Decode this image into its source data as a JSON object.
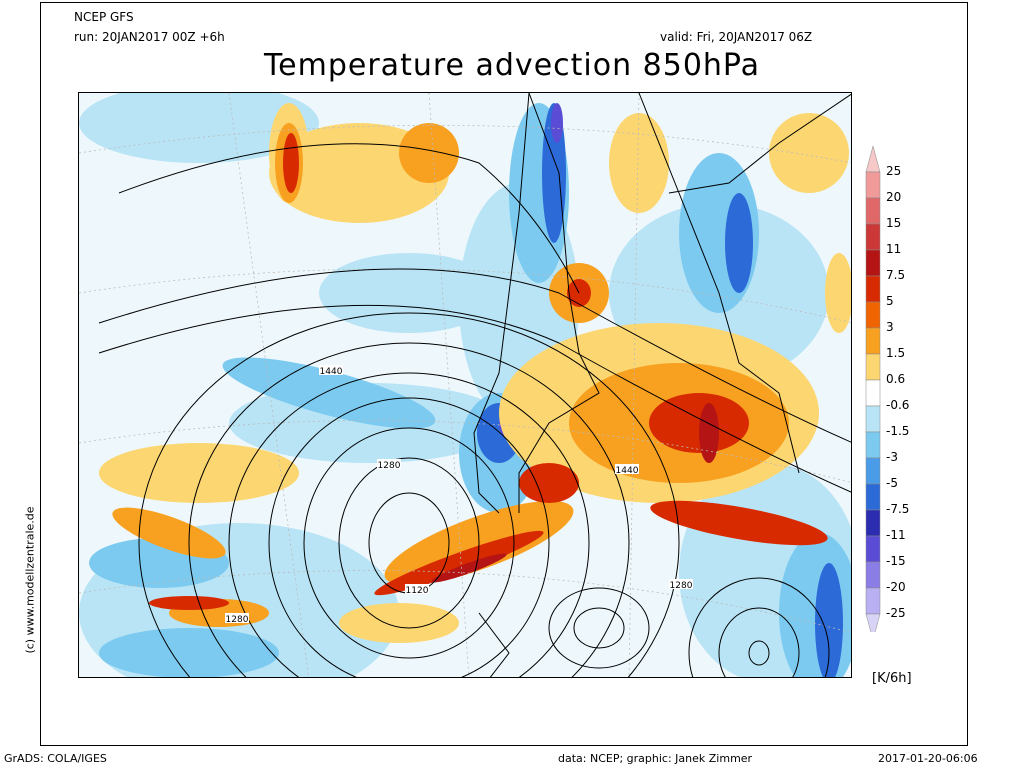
{
  "header": {
    "model": "NCEP GFS",
    "run": "run: 20JAN2017 00Z +6h",
    "valid": "valid: Fri, 20JAN2017 06Z",
    "title": "Temperature advection 850hPa"
  },
  "side_text": "(c) www.modellzentrale.de",
  "units": "[K/6h]",
  "footer": {
    "left": "GrADS: COLA/IGES",
    "center": "data: NCEP; graphic: Janek Zimmer",
    "right": "2017-01-20-06:06"
  },
  "contour_labels": [
    "1440",
    "1280",
    "1120",
    "1280",
    "1440",
    "1280"
  ],
  "legend": {
    "labels": [
      "25",
      "20",
      "15",
      "11",
      "7.5",
      "5",
      "3",
      "1.5",
      "0.6",
      "-0.6",
      "-1.5",
      "-3",
      "-5",
      "-7.5",
      "-11",
      "-15",
      "-20",
      "-25"
    ],
    "colors": [
      "#f6c8c8",
      "#f09a9a",
      "#e06868",
      "#cc3838",
      "#b41414",
      "#d82a00",
      "#f06400",
      "#f8a020",
      "#fcd670",
      "#ffffff",
      "#b8e4f6",
      "#7ccaf0",
      "#4a9ce8",
      "#2c6ad8",
      "#2c2cb0",
      "#5a4cd4",
      "#8a7ee6",
      "#b8b0f2",
      "#d8d4f8"
    ]
  }
}
